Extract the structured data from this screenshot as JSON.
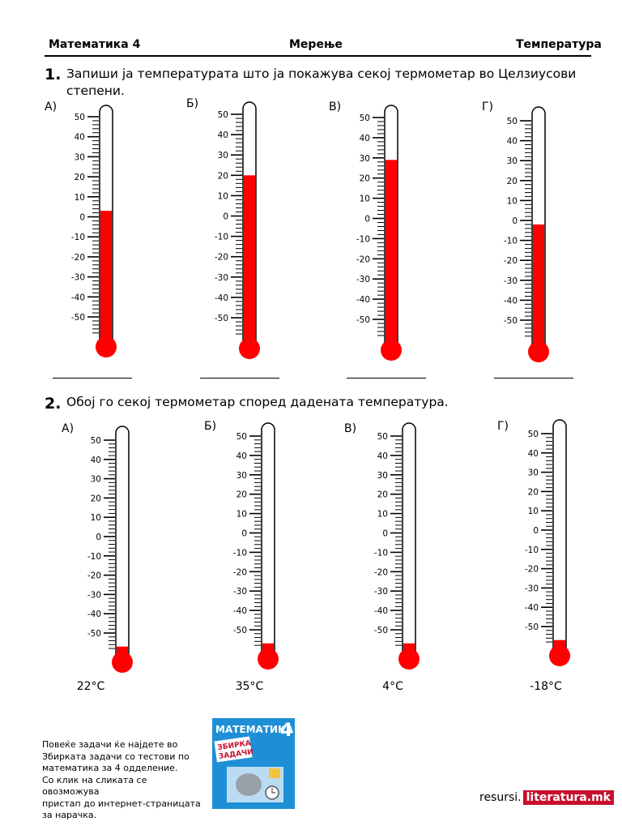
{
  "header": {
    "left": "Математика 4",
    "center": "Мерење",
    "right": "Температура"
  },
  "task1": {
    "number": "1.",
    "text_line1": "Запиши ја температурата што ја покажува секој термометар во Целзиусови",
    "text_line2": "степени.",
    "thermometers": [
      {
        "label": "А)",
        "level": 3
      },
      {
        "label": "Б)",
        "level": 20
      },
      {
        "label": "В)",
        "level": 29
      },
      {
        "label": "Г)",
        "level": -2
      }
    ]
  },
  "task2": {
    "number": "2.",
    "text": "Обој го секој термометар според дадената температура.",
    "thermometers": [
      {
        "label": "А)",
        "target": "22°C"
      },
      {
        "label": "Б)",
        "target": "35°C"
      },
      {
        "label": "В)",
        "target": "4°C"
      },
      {
        "label": "Г)",
        "target": "-18°C"
      }
    ]
  },
  "scale_labels": [
    "50",
    "40",
    "30",
    "20",
    "10",
    "0",
    "-10",
    "-20",
    "-30",
    "-40",
    "-50"
  ],
  "footer": {
    "line1": "Повеќе задачи ќе најдете во",
    "line2": "Збирката задачи со тестови по",
    "line3": "математика за 4 одделение.",
    "line4": "Со клик на сликата се овозможува",
    "line5": "пристап до интернет-страницата",
    "line6": "за нарачка.",
    "book_title": "МАТЕМАТИКА",
    "book_grade": "4",
    "book_subtitle_1": "ЗБИРКА",
    "book_subtitle_2": "ЗАДАЧИ",
    "brand_prefix": "resursi.",
    "brand_main": "literatura.mk"
  },
  "colors": {
    "mercury": "#ff0000",
    "brand_red": "#c8102e",
    "book_blue": "#1e8fd6"
  }
}
